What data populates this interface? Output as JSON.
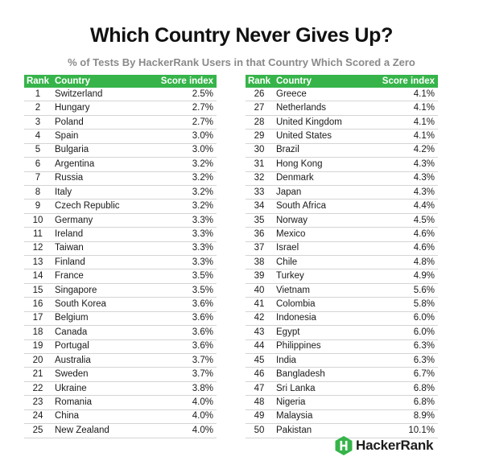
{
  "title": "Which Country Never Gives Up?",
  "subtitle": "% of Tests By HackerRank Users in that Country Which Scored a Zero",
  "headers": {
    "rank": "Rank",
    "country": "Country",
    "score": "Score index"
  },
  "brand": {
    "name": "HackerRank",
    "color": "#36b44a"
  },
  "chart_data": {
    "type": "table",
    "title": "Which Country Never Gives Up?",
    "subtitle": "% of Tests By HackerRank Users in that Country Which Scored a Zero",
    "columns": [
      "Rank",
      "Country",
      "Score index"
    ],
    "rows_left": [
      {
        "rank": "1",
        "country": "Switzerland",
        "score": "2.5%"
      },
      {
        "rank": "2",
        "country": "Hungary",
        "score": "2.7%"
      },
      {
        "rank": "3",
        "country": "Poland",
        "score": "2.7%"
      },
      {
        "rank": "4",
        "country": "Spain",
        "score": "3.0%"
      },
      {
        "rank": "5",
        "country": "Bulgaria",
        "score": "3.0%"
      },
      {
        "rank": "6",
        "country": "Argentina",
        "score": "3.2%"
      },
      {
        "rank": "7",
        "country": "Russia",
        "score": "3.2%"
      },
      {
        "rank": "8",
        "country": "Italy",
        "score": "3.2%"
      },
      {
        "rank": "9",
        "country": "Czech Republic",
        "score": "3.2%"
      },
      {
        "rank": "10",
        "country": "Germany",
        "score": "3.3%"
      },
      {
        "rank": "11",
        "country": "Ireland",
        "score": "3.3%"
      },
      {
        "rank": "12",
        "country": "Taiwan",
        "score": "3.3%"
      },
      {
        "rank": "13",
        "country": "Finland",
        "score": "3.3%"
      },
      {
        "rank": "14",
        "country": "France",
        "score": "3.5%"
      },
      {
        "rank": "15",
        "country": "Singapore",
        "score": "3.5%"
      },
      {
        "rank": "16",
        "country": "South Korea",
        "score": "3.6%"
      },
      {
        "rank": "17",
        "country": "Belgium",
        "score": "3.6%"
      },
      {
        "rank": "18",
        "country": "Canada",
        "score": "3.6%"
      },
      {
        "rank": "19",
        "country": "Portugal",
        "score": "3.6%"
      },
      {
        "rank": "20",
        "country": "Australia",
        "score": "3.7%"
      },
      {
        "rank": "21",
        "country": "Sweden",
        "score": "3.7%"
      },
      {
        "rank": "22",
        "country": "Ukraine",
        "score": "3.8%"
      },
      {
        "rank": "23",
        "country": "Romania",
        "score": "4.0%"
      },
      {
        "rank": "24",
        "country": "China",
        "score": "4.0%"
      },
      {
        "rank": "25",
        "country": "New Zealand",
        "score": "4.0%"
      }
    ],
    "rows_right": [
      {
        "rank": "26",
        "country": "Greece",
        "score": "4.1%"
      },
      {
        "rank": "27",
        "country": "Netherlands",
        "score": "4.1%"
      },
      {
        "rank": "28",
        "country": "United Kingdom",
        "score": "4.1%"
      },
      {
        "rank": "29",
        "country": "United States",
        "score": "4.1%"
      },
      {
        "rank": "30",
        "country": "Brazil",
        "score": "4.2%"
      },
      {
        "rank": "31",
        "country": "Hong Kong",
        "score": "4.3%"
      },
      {
        "rank": "32",
        "country": "Denmark",
        "score": "4.3%"
      },
      {
        "rank": "33",
        "country": "Japan",
        "score": "4.3%"
      },
      {
        "rank": "34",
        "country": "South Africa",
        "score": "4.4%"
      },
      {
        "rank": "35",
        "country": "Norway",
        "score": "4.5%"
      },
      {
        "rank": "36",
        "country": "Mexico",
        "score": "4.6%"
      },
      {
        "rank": "37",
        "country": "Israel",
        "score": "4.6%"
      },
      {
        "rank": "38",
        "country": "Chile",
        "score": "4.8%"
      },
      {
        "rank": "39",
        "country": "Turkey",
        "score": "4.9%"
      },
      {
        "rank": "40",
        "country": "Vietnam",
        "score": "5.6%"
      },
      {
        "rank": "41",
        "country": "Colombia",
        "score": "5.8%"
      },
      {
        "rank": "42",
        "country": "Indonesia",
        "score": "6.0%"
      },
      {
        "rank": "43",
        "country": "Egypt",
        "score": "6.0%"
      },
      {
        "rank": "44",
        "country": "Philippines",
        "score": "6.3%"
      },
      {
        "rank": "45",
        "country": "India",
        "score": "6.3%"
      },
      {
        "rank": "46",
        "country": "Bangladesh",
        "score": "6.7%"
      },
      {
        "rank": "47",
        "country": "Sri Lanka",
        "score": "6.8%"
      },
      {
        "rank": "48",
        "country": "Nigeria",
        "score": "6.8%"
      },
      {
        "rank": "49",
        "country": "Malaysia",
        "score": "8.9%"
      },
      {
        "rank": "50",
        "country": "Pakistan",
        "score": "10.1%"
      }
    ]
  }
}
